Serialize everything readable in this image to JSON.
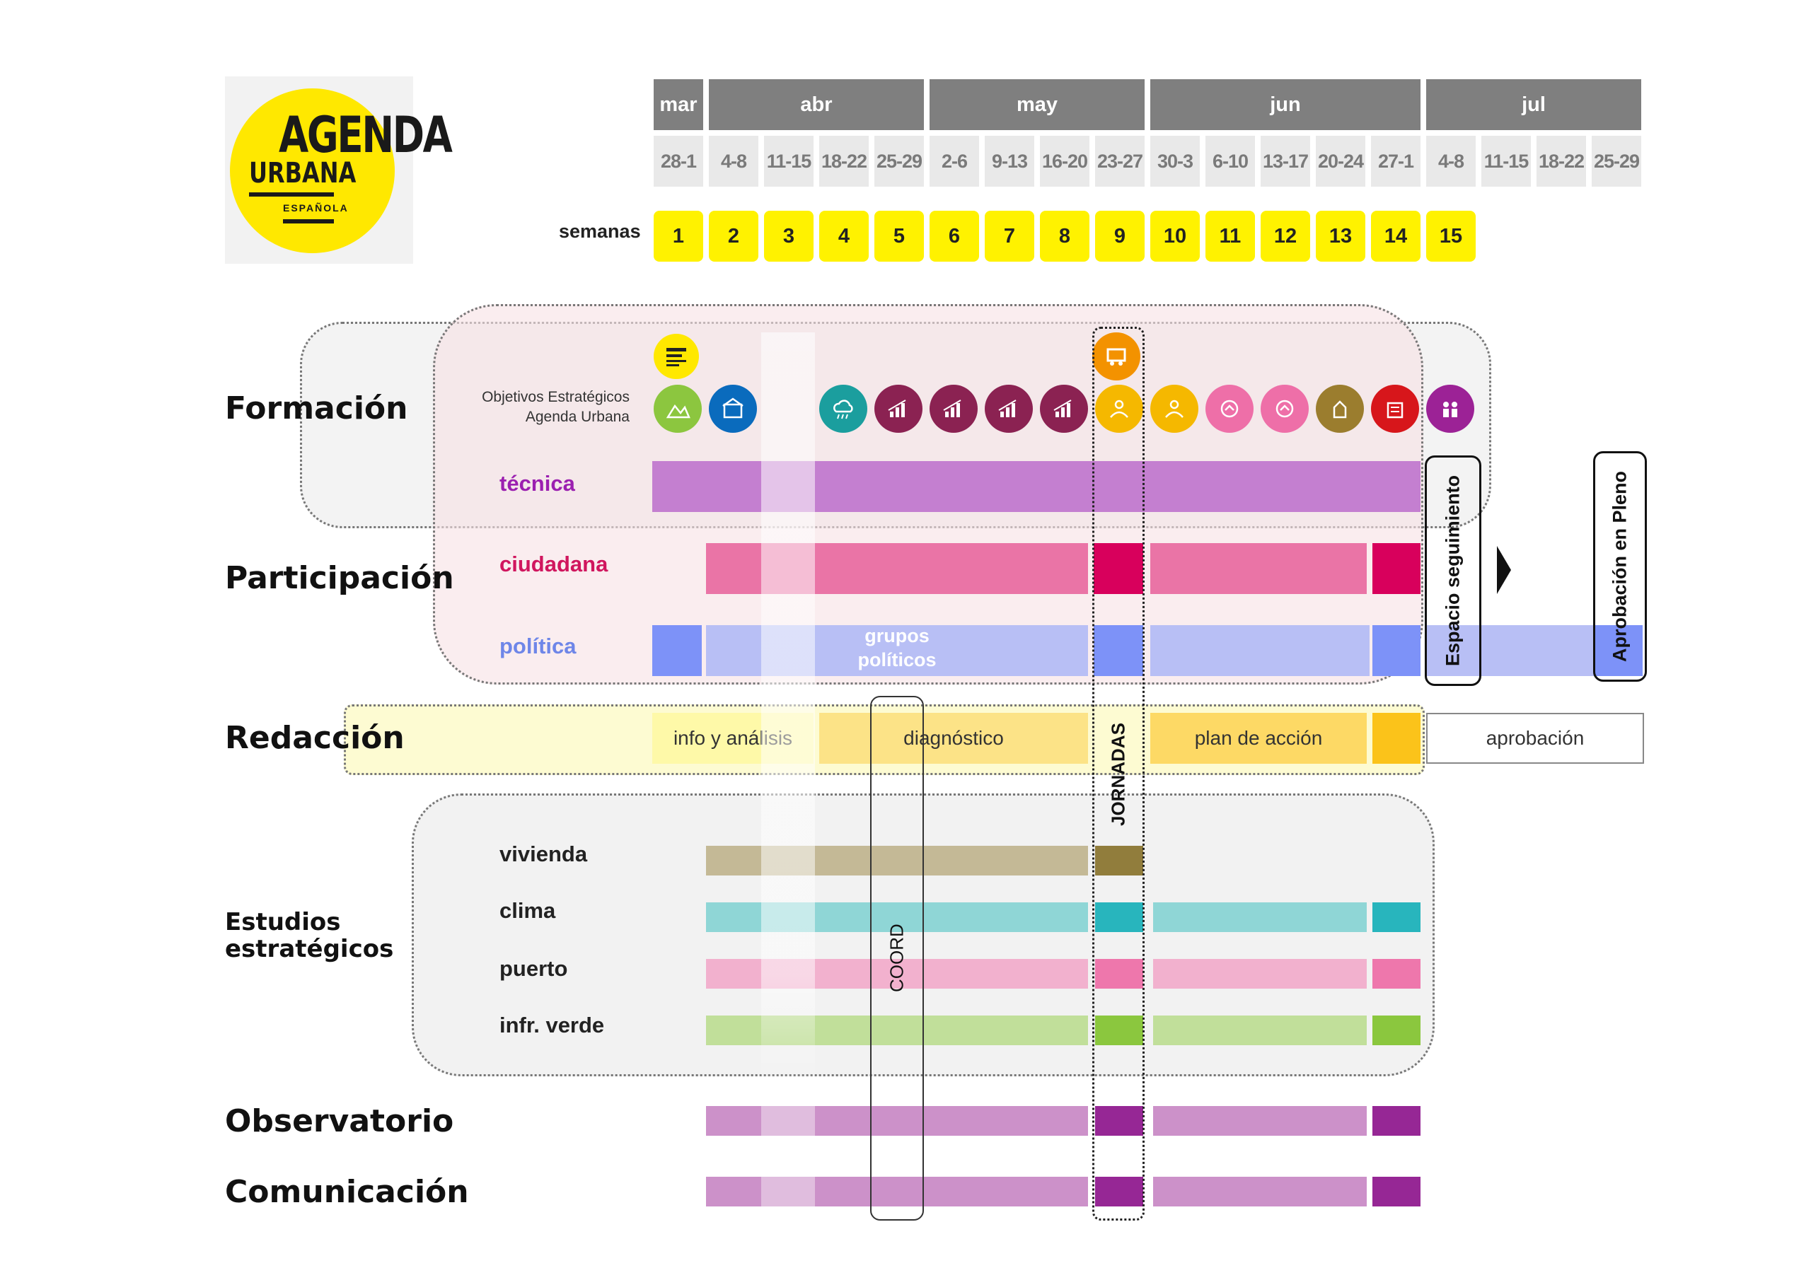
{
  "logo": {
    "line1": "AGENDA",
    "line2": "URBANA",
    "line3": "ESPAÑOLA"
  },
  "months": [
    "mar",
    "abr",
    "may",
    "jun",
    "jul"
  ],
  "week_ranges": [
    "28-1",
    "4-8",
    "11-15",
    "18-22",
    "25-29",
    "2-6",
    "9-13",
    "16-20",
    "23-27",
    "30-3",
    "6-10",
    "13-17",
    "20-24",
    "27-1",
    "4-8",
    "11-15",
    "18-22",
    "25-29"
  ],
  "semanas_label": "semanas",
  "weeks": [
    "1",
    "2",
    "3",
    "4",
    "5",
    "6",
    "7",
    "8",
    "9",
    "10",
    "11",
    "12",
    "13",
    "14",
    "15"
  ],
  "sections": {
    "formacion": "Formación",
    "participacion": "Participación",
    "redaccion": "Redacción",
    "estudios": [
      "Estudios",
      "estratégicos"
    ],
    "observatorio": "Observatorio",
    "comunicacion": "Comunicación"
  },
  "objetivos_label": [
    "Objetivos Estratégicos",
    "Agenda Urbana"
  ],
  "objective_icons": [
    {
      "icon": "landscape-icon",
      "color": "#8cc63f"
    },
    {
      "icon": "city-icon",
      "color": "#0a6bbd"
    },
    {
      "icon": "climate-icon",
      "color": "#1b9e9e"
    },
    {
      "icon": "economy-icon",
      "color": "#8b2252"
    },
    {
      "icon": "economy-icon",
      "color": "#8b2252"
    },
    {
      "icon": "economy-icon",
      "color": "#8b2252"
    },
    {
      "icon": "economy-icon",
      "color": "#8b2252"
    },
    {
      "icon": "social-icon",
      "color": "#f5b800"
    },
    {
      "icon": "social-icon",
      "color": "#f5b800"
    },
    {
      "icon": "housing-icon",
      "color": "#ee6fa8"
    },
    {
      "icon": "housing-icon",
      "color": "#ee6fa8"
    },
    {
      "icon": "digital-icon",
      "color": "#9b7d2e"
    },
    {
      "icon": "governance-icon",
      "color": "#d7161b"
    },
    {
      "icon": "people-icon",
      "color": "#9c2296"
    }
  ],
  "rows": {
    "tecnica": "técnica",
    "ciudadana": "ciudadana",
    "politica": "política",
    "vivienda": "vivienda",
    "clima": "clima",
    "puerto": "puerto",
    "infr_verde": "infr. verde"
  },
  "redaccion_phases": [
    "info y análisis",
    "diagnóstico",
    "plan de acción",
    "aprobación"
  ],
  "grupos_politicos": [
    "grupos",
    "políticos"
  ],
  "jornadas": "JORNADAS",
  "coord": "COORD",
  "espacio_seguimiento": "Espacio seguimiento",
  "aprobacion_pleno": "Aprobación en Pleno",
  "colors": {
    "month": "#7f7f7f",
    "range": "#e9e9e9",
    "week": "#fff200",
    "tecnica": "#c47fd0",
    "ciudadana": "#ea74a6",
    "ciudadana_dark": "#d8005c",
    "politica": "#b8bff5",
    "politica_dark": "#7d92f8",
    "vivienda": "#c4b996",
    "vivienda_dark": "#917d3c",
    "clima": "#8fd6d6",
    "clima_dark": "#28b5bd",
    "puerto": "#f2b1ce",
    "puerto_dark": "#ee77ac",
    "verde": "#c1df9a",
    "verde_dark": "#8bc73e",
    "obs": "#cc91c9",
    "obs_dark": "#962795"
  }
}
